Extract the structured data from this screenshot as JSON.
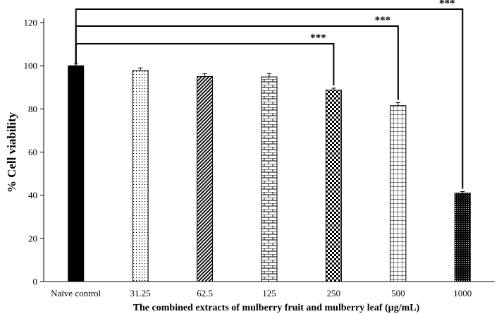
{
  "chart_data": {
    "type": "bar",
    "categories": [
      "Naïve control",
      "31.25",
      "62.5",
      "125",
      "250",
      "500",
      "1000"
    ],
    "values": [
      100,
      97.8,
      95.0,
      94.8,
      88.7,
      81.5,
      41.0
    ],
    "errors": [
      0.8,
      1.2,
      1.3,
      1.6,
      0.9,
      1.4,
      0.7
    ],
    "patterns": [
      "solid",
      "dots",
      "diagonal",
      "brick",
      "checker",
      "grid",
      "dense-dots"
    ],
    "ylabel": "% Cell viability",
    "xlabel": "The combined extracts of mulberry fruit and mulberry leaf (µg/mL)",
    "ylim": [
      0,
      120
    ],
    "yticks": [
      0,
      20,
      40,
      60,
      80,
      100,
      120
    ],
    "significance": [
      {
        "from": 0,
        "to": 4,
        "label": "***"
      },
      {
        "from": 0,
        "to": 5,
        "label": "***"
      },
      {
        "from": 0,
        "to": 6,
        "label": "***"
      }
    ],
    "grid": false,
    "legend": "none"
  }
}
